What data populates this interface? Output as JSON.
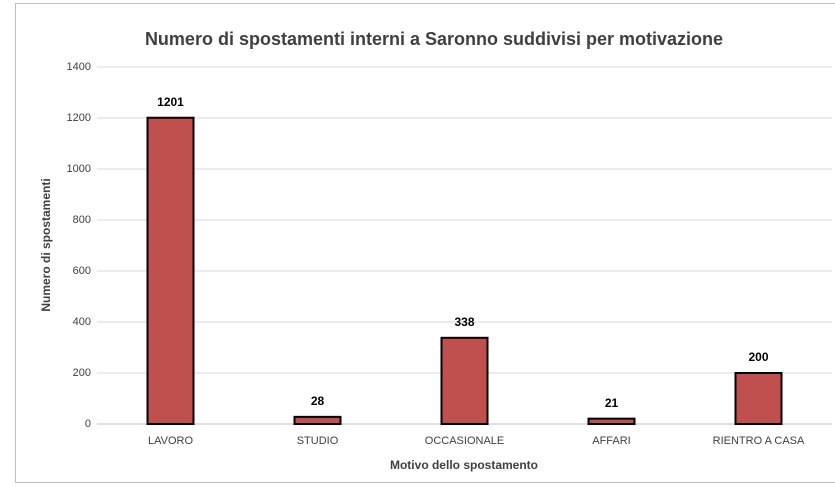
{
  "chart_data": {
    "type": "bar",
    "title": "Numero di spostamenti interni a Saronno suddivisi per motivazione",
    "x_label": "Motivo dello spostamento",
    "y_label": "Numero di spostamenti",
    "categories": [
      "LAVORO",
      "STUDIO",
      "OCCASIONALE",
      "AFFARI",
      "RIENTRO A CASA"
    ],
    "values": [
      1201,
      28,
      338,
      21,
      200
    ],
    "color": "#c0504d",
    "ylim": [
      0,
      1400
    ],
    "yticks": [
      0,
      200,
      400,
      600,
      800,
      1000,
      1200,
      1400
    ],
    "grid": true
  }
}
